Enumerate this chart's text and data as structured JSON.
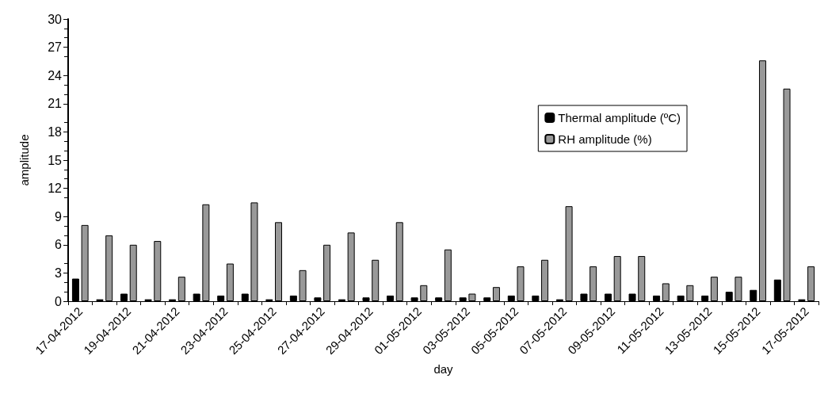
{
  "chart_data": {
    "type": "bar",
    "xlabel": "day",
    "ylabel": "amplitude",
    "categories": [
      "17-04-2012",
      null,
      "19-04-2012",
      null,
      "21-04-2012",
      null,
      "23-04-2012",
      null,
      "25-04-2012",
      null,
      "27-04-2012",
      null,
      "29-04-2012",
      null,
      "01-05-2012",
      null,
      "03-05-2012",
      null,
      "05-05-2012",
      null,
      "07-05-2012",
      null,
      "09-05-2012",
      null,
      "11-05-2012",
      null,
      "13-05-2012",
      null,
      "15-05-2012",
      null,
      "17-05-2012"
    ],
    "series": [
      {
        "name": "Thermal amplitude (ºC)",
        "color": "#000000",
        "values": [
          2.4,
          0.2,
          0.8,
          0.2,
          0.2,
          0.8,
          0.6,
          0.8,
          0.2,
          0.6,
          0.4,
          0.2,
          0.4,
          0.6,
          0.4,
          0.4,
          0.4,
          0.4,
          0.6,
          0.6,
          0.2,
          0.8,
          0.8,
          0.8,
          0.6,
          0.6,
          0.6,
          1.0,
          1.2,
          2.3,
          0.2
        ]
      },
      {
        "name": "RH amplitude (%)",
        "color": "#999999",
        "values": [
          8.1,
          7.0,
          6.0,
          6.4,
          2.6,
          10.3,
          4.0,
          10.5,
          8.4,
          3.3,
          6.0,
          7.3,
          4.4,
          8.4,
          1.7,
          5.5,
          0.8,
          1.5,
          3.7,
          4.4,
          10.1,
          3.7,
          4.8,
          4.8,
          1.9,
          1.7,
          2.6,
          2.6,
          25.6,
          22.6,
          3.7
        ]
      }
    ],
    "ylim": [
      0,
      30
    ],
    "yticks": [
      0,
      3,
      6,
      9,
      12,
      15,
      18,
      21,
      24,
      27,
      30
    ],
    "grid": false,
    "legend": "right"
  }
}
